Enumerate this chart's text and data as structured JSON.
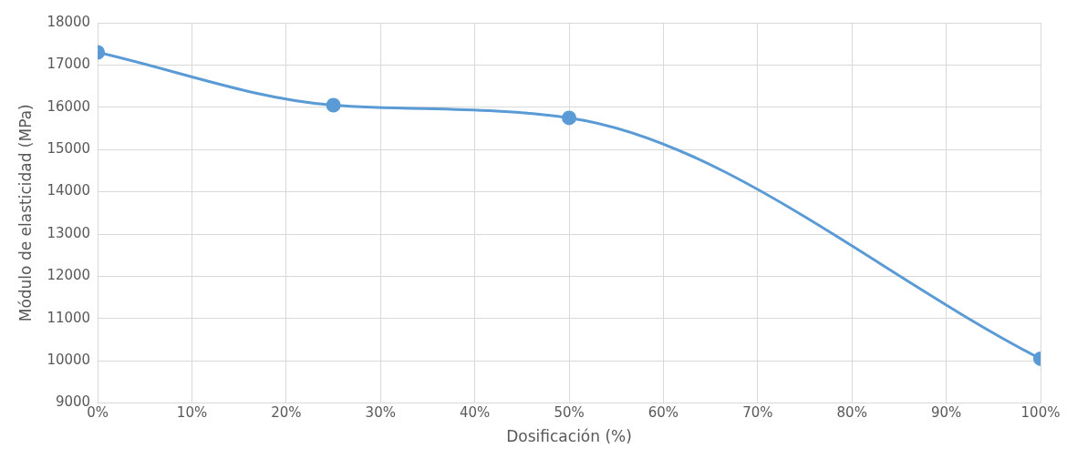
{
  "chart_data": {
    "type": "line",
    "xlabel": "Dosificación (%)",
    "ylabel": "Módulo de elasticidad (MPa)",
    "x": [
      0,
      25,
      50,
      100
    ],
    "series": [
      {
        "color": "#5b9bd5",
        "values": [
          17300,
          16050,
          15750,
          10050
        ]
      }
    ],
    "xlim": [
      0,
      100
    ],
    "xticks": [
      {
        "value": 0,
        "label": "0%"
      },
      {
        "value": 10,
        "label": "10%"
      },
      {
        "value": 20,
        "label": "20%"
      },
      {
        "value": 30,
        "label": "30%"
      },
      {
        "value": 40,
        "label": "40%"
      },
      {
        "value": 50,
        "label": "50%"
      },
      {
        "value": 60,
        "label": "60%"
      },
      {
        "value": 70,
        "label": "70%"
      },
      {
        "value": 80,
        "label": "80%"
      },
      {
        "value": 90,
        "label": "90%"
      },
      {
        "value": 100,
        "label": "100%"
      }
    ],
    "ylim": [
      9000,
      18000
    ],
    "yticks": [
      9000,
      10000,
      11000,
      12000,
      13000,
      14000,
      15000,
      16000,
      17000,
      18000
    ],
    "grid": true,
    "legend": false,
    "marker": "circle",
    "line_style": "solid"
  }
}
